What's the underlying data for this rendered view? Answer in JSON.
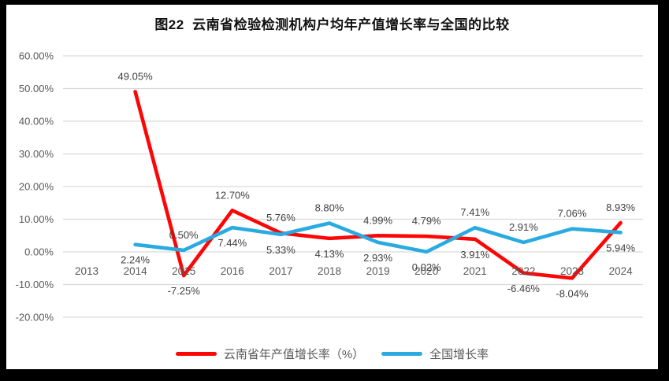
{
  "title": "图22  云南省检验检测机构户均年产值增长率与全国的比较",
  "colors": {
    "frame_border": "#000000",
    "background": "#ffffff",
    "gridline": "#d9d9d9",
    "axis_label": "#595959",
    "data_label": "#404040",
    "title_text": "#111111",
    "series_yunnan": "#fe0606",
    "series_national": "#29abe2"
  },
  "chart_data": {
    "type": "line",
    "title": "图22  云南省检验检测机构户均年产值增长率与全国的比较",
    "categories": [
      "2013",
      "2014",
      "2015",
      "2016",
      "2017",
      "2018",
      "2019",
      "2020",
      "2021",
      "2022",
      "2023",
      "2024"
    ],
    "series": [
      {
        "name": "云南省年产值增长率（%）",
        "color": "#fe0606",
        "values": [
          null,
          49.05,
          -7.25,
          12.7,
          5.76,
          4.13,
          4.99,
          4.79,
          3.91,
          -6.46,
          -8.04,
          8.93
        ],
        "labels": [
          null,
          "49.05%",
          "-7.25%",
          "12.70%",
          "5.76%",
          "4.13%",
          "4.99%",
          "4.79%",
          "3.91%",
          "-6.46%",
          "-8.04%",
          "8.93%"
        ],
        "label_side": [
          null,
          "above",
          "below",
          "above",
          "above",
          "below",
          "above",
          "above",
          "below",
          "below",
          "below",
          "above"
        ]
      },
      {
        "name": "全国增长率",
        "color": "#29abe2",
        "values": [
          null,
          2.24,
          0.5,
          7.44,
          5.33,
          8.8,
          2.93,
          0.02,
          7.41,
          2.91,
          7.06,
          5.94
        ],
        "labels": [
          null,
          "2.24%",
          "0.50%",
          "7.44%",
          "5.33%",
          "8.80%",
          "2.93%",
          "0.02%",
          "7.41%",
          "2.91%",
          "7.06%",
          "5.94%"
        ],
        "label_side": [
          null,
          "below",
          "above",
          "below",
          "below",
          "above",
          "below",
          "below",
          "above",
          "above",
          "above",
          "below"
        ]
      }
    ],
    "y_ticks": [
      "60.00%",
      "50.00%",
      "40.00%",
      "30.00%",
      "20.00%",
      "10.00%",
      "0.00%",
      "-10.00%",
      "-20.00%"
    ],
    "ylim": [
      -20,
      60
    ],
    "xlabel": "",
    "ylabel": "",
    "grid": true,
    "data_labels": true,
    "label_format": "0.00%",
    "legend_position": "bottom"
  }
}
